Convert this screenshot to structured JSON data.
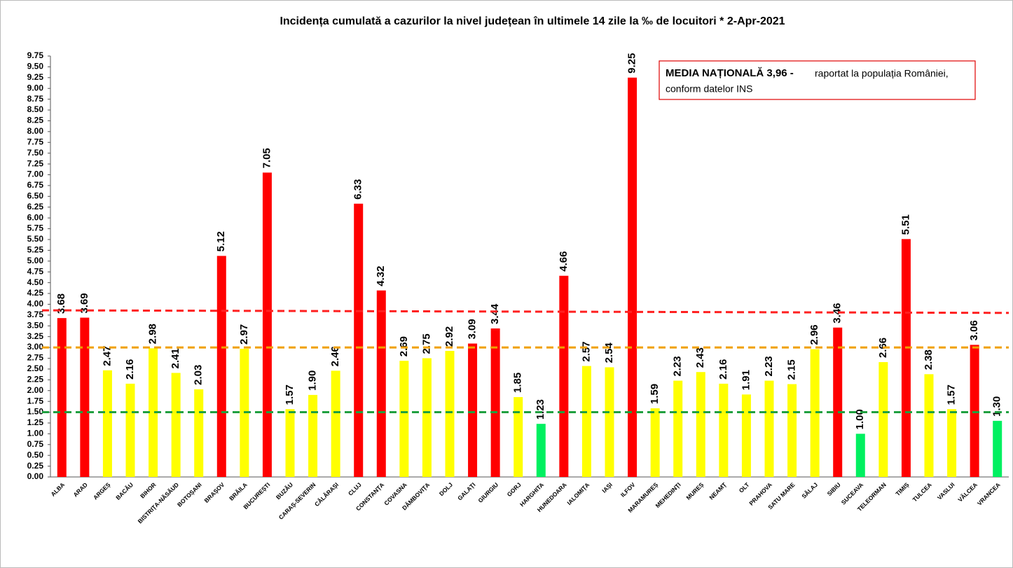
{
  "chart_data": {
    "type": "bar",
    "title": "Incidența cumulată a cazurilor la nivel județean în ultimele 14 zile la ‰ de locuitori * 2-Apr-2021",
    "annotation": {
      "bold": "MEDIA NAȚIONALĂ  3,96 -",
      "text": "raportat la populația României,",
      "text2": "conform datelor INS"
    },
    "categories": [
      "ALBA",
      "ARAD",
      "ARGEȘ",
      "BACĂU",
      "BIHOR",
      "BISTRIȚA-NĂSĂUD",
      "BOTOȘANI",
      "BRAȘOV",
      "BRĂILA",
      "BUCUREȘTI",
      "BUZĂU",
      "CARAȘ-SEVERIN",
      "CĂLĂRAȘI",
      "CLUJ",
      "CONSTANȚA",
      "COVASNA",
      "DÂMBOVIȚA",
      "DOLJ",
      "GALAȚI",
      "GIURGIU",
      "GORJ",
      "HARGHITA",
      "HUNEDOARA",
      "IALOMIȚA",
      "IAȘI",
      "ILFOV",
      "MARAMUREȘ",
      "MEHEDINȚI",
      "MUREȘ",
      "NEAMȚ",
      "OLT",
      "PRAHOVA",
      "SATU MARE",
      "SĂLAJ",
      "SIBIU",
      "SUCEAVA",
      "TELEORMAN",
      "TIMIȘ",
      "TULCEA",
      "VASLUI",
      "VÂLCEA",
      "VRANCEA"
    ],
    "values": [
      3.68,
      3.69,
      2.47,
      2.16,
      2.98,
      2.41,
      2.03,
      5.12,
      2.97,
      7.05,
      1.57,
      1.9,
      2.46,
      6.33,
      4.32,
      2.69,
      2.75,
      2.92,
      3.09,
      3.44,
      1.85,
      1.23,
      4.66,
      2.57,
      2.54,
      9.25,
      1.59,
      2.23,
      2.43,
      2.16,
      1.91,
      2.23,
      2.15,
      2.96,
      3.46,
      1.0,
      2.66,
      5.51,
      2.38,
      1.57,
      3.06,
      1.3
    ],
    "value_labels": [
      "3.68",
      "3.69",
      "2.47",
      "2.16",
      "2.98",
      "2.41",
      "2.03",
      "5.12",
      "2.97",
      "7.05",
      "1.57",
      "1.90",
      "2.46",
      "6.33",
      "4.32",
      "2.69",
      "2.75",
      "2.92",
      "3.09",
      "3.44",
      "1.85",
      "1.23",
      "4.66",
      "2.57",
      "2.54",
      "9.25",
      "1.59",
      "2.23",
      "2.43",
      "2.16",
      "1.91",
      "2.23",
      "2.15",
      "2.96",
      "3.46",
      "1.00",
      "2.66",
      "5.51",
      "2.38",
      "1.57",
      "3.06",
      "1.30"
    ],
    "colors": [
      "#ff0000",
      "#ff0000",
      "#ffff00",
      "#ffff00",
      "#ffff00",
      "#ffff00",
      "#ffff00",
      "#ff0000",
      "#ffff00",
      "#ff0000",
      "#ffff00",
      "#ffff00",
      "#ffff00",
      "#ff0000",
      "#ff0000",
      "#ffff00",
      "#ffff00",
      "#ffff00",
      "#ff0000",
      "#ff0000",
      "#ffff00",
      "#00f060",
      "#ff0000",
      "#ffff00",
      "#ffff00",
      "#ff0000",
      "#ffff00",
      "#ffff00",
      "#ffff00",
      "#ffff00",
      "#ffff00",
      "#ffff00",
      "#ffff00",
      "#ffff00",
      "#ff0000",
      "#00f060",
      "#ffff00",
      "#ff0000",
      "#ffff00",
      "#ffff00",
      "#ff0000",
      "#00f060"
    ],
    "reference_lines": [
      {
        "color": "#ff2020",
        "start": 3.86,
        "end": 3.8
      },
      {
        "color": "#f0a000",
        "start": 3.0,
        "end": 3.0
      },
      {
        "color": "#20a040",
        "start": 1.5,
        "end": 1.5
      }
    ],
    "ylim": [
      0,
      9.75
    ],
    "yticks": [
      {
        "value": 0,
        "label": "0.00"
      },
      {
        "value": 0.25,
        "label": "0.25"
      },
      {
        "value": 0.5,
        "label": "0.50"
      },
      {
        "value": 0.75,
        "label": "0.75"
      },
      {
        "value": 1,
        "label": "1.00"
      },
      {
        "value": 1.25,
        "label": "1.25"
      },
      {
        "value": 1.5,
        "label": "1.50"
      },
      {
        "value": 1.75,
        "label": "1.75"
      },
      {
        "value": 2,
        "label": "2.00"
      },
      {
        "value": 2.25,
        "label": "2.25"
      },
      {
        "value": 2.5,
        "label": "2.50"
      },
      {
        "value": 2.75,
        "label": "2.75"
      },
      {
        "value": 3,
        "label": "3.00"
      },
      {
        "value": 3.25,
        "label": "3.25"
      },
      {
        "value": 3.5,
        "label": "3.50"
      },
      {
        "value": 3.75,
        "label": "3.75"
      },
      {
        "value": 4,
        "label": "4.00"
      },
      {
        "value": 4.25,
        "label": "4.25"
      },
      {
        "value": 4.5,
        "label": "4.50"
      },
      {
        "value": 4.75,
        "label": "4.75"
      },
      {
        "value": 5,
        "label": "5.00"
      },
      {
        "value": 5.25,
        "label": "5.25"
      },
      {
        "value": 5.5,
        "label": "5.50"
      },
      {
        "value": 5.75,
        "label": "5.75"
      },
      {
        "value": 6,
        "label": "6.00"
      },
      {
        "value": 6.25,
        "label": "6.25"
      },
      {
        "value": 6.5,
        "label": "6.50"
      },
      {
        "value": 6.75,
        "label": "6.75"
      },
      {
        "value": 7,
        "label": "7.00"
      },
      {
        "value": 7.25,
        "label": "7.25"
      },
      {
        "value": 7.5,
        "label": "7.50"
      },
      {
        "value": 7.75,
        "label": "7.75"
      },
      {
        "value": 8,
        "label": "8.00"
      },
      {
        "value": 8.25,
        "label": "8.25"
      },
      {
        "value": 8.5,
        "label": "8.50"
      },
      {
        "value": 8.75,
        "label": "8.75"
      },
      {
        "value": 9,
        "label": "9.00"
      },
      {
        "value": 9.25,
        "label": "9.25"
      },
      {
        "value": 9.5,
        "label": "9.50"
      },
      {
        "value": 9.75,
        "label": "9.75"
      }
    ],
    "grid": false
  }
}
